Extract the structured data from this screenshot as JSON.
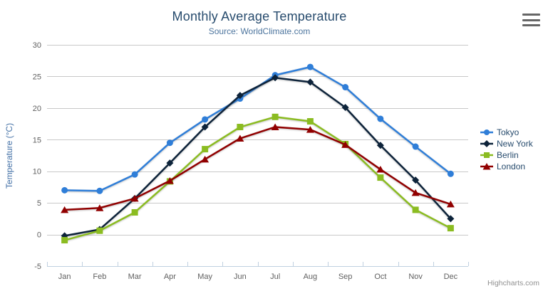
{
  "credits": {
    "label": "Highcharts.com"
  },
  "export_menu": {
    "icon": "hamburger-icon"
  },
  "colors": {
    "title": "#274b6d",
    "subtitle": "#4d759e",
    "axis_labels": "#606060",
    "axis_title": "#4572a7",
    "gridline": "#c8c8c8",
    "axis_line": "#c0d0e0",
    "legend_text": "#274b6d",
    "credits": "#909090",
    "export_icon": "#666666"
  },
  "chart_data": {
    "type": "line",
    "title": "Monthly Average Temperature",
    "subtitle": "Source: WorldClimate.com",
    "xlabel": "",
    "ylabel": "Temperature (°C)",
    "ylim": [
      -5,
      30
    ],
    "ytick_step": 5,
    "yticks": [
      -5,
      0,
      5,
      10,
      15,
      20,
      25,
      30
    ],
    "grid": true,
    "legend_position": "right",
    "categories": [
      "Jan",
      "Feb",
      "Mar",
      "Apr",
      "May",
      "Jun",
      "Jul",
      "Aug",
      "Sep",
      "Oct",
      "Nov",
      "Dec"
    ],
    "series": [
      {
        "name": "Tokyo",
        "color": "#2f7ed8",
        "marker": "circle",
        "values": [
          7.0,
          6.9,
          9.5,
          14.5,
          18.2,
          21.5,
          25.2,
          26.5,
          23.3,
          18.3,
          13.9,
          9.6
        ]
      },
      {
        "name": "New York",
        "color": "#0d233a",
        "marker": "diamond",
        "values": [
          -0.2,
          0.8,
          5.7,
          11.3,
          17.0,
          22.0,
          24.8,
          24.1,
          20.1,
          14.1,
          8.6,
          2.5
        ]
      },
      {
        "name": "Berlin",
        "color": "#8bbc21",
        "marker": "square",
        "values": [
          -0.9,
          0.6,
          3.5,
          8.4,
          13.5,
          17.0,
          18.6,
          17.9,
          14.3,
          9.0,
          3.9,
          1.0
        ]
      },
      {
        "name": "London",
        "color": "#910000",
        "marker": "triangle",
        "values": [
          3.9,
          4.2,
          5.7,
          8.5,
          11.9,
          15.2,
          17.0,
          16.6,
          14.2,
          10.3,
          6.6,
          4.8
        ]
      }
    ]
  }
}
